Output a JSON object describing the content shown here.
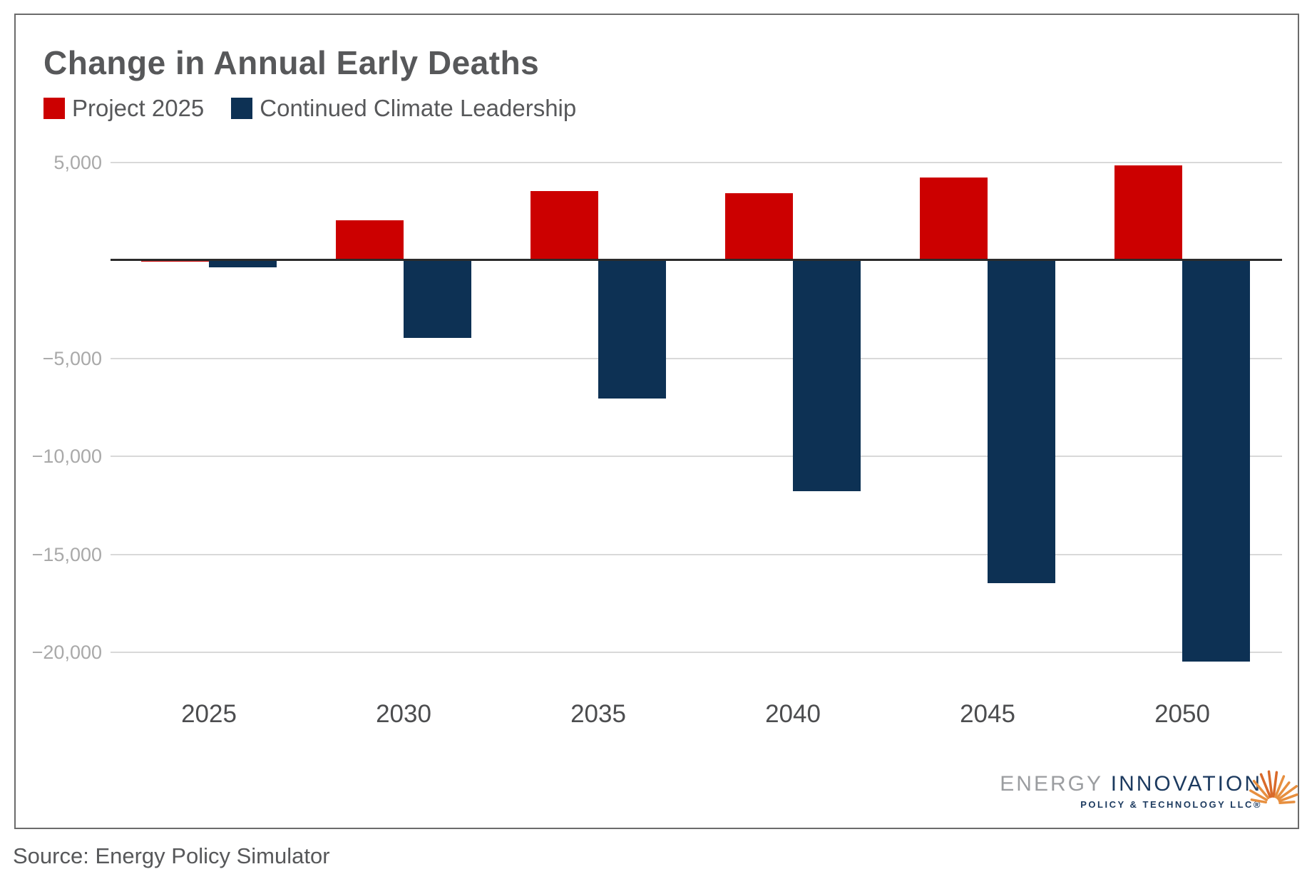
{
  "card": {
    "title": "Change in Annual Early Deaths"
  },
  "chart_data": {
    "type": "bar",
    "title": "Change in Annual Early Deaths",
    "xlabel": "",
    "ylabel": "",
    "categories": [
      "2025",
      "2030",
      "2035",
      "2040",
      "2045",
      "2050"
    ],
    "series": [
      {
        "name": "Project 2025",
        "color": "#cc0000",
        "values": [
          -100,
          2000,
          3500,
          3400,
          4200,
          4800
        ]
      },
      {
        "name": "Continued Climate Leadership",
        "color": "#0d3154",
        "values": [
          -400,
          -4000,
          -7100,
          -11800,
          -16500,
          -20500
        ]
      }
    ],
    "y_axis": {
      "ticks": [
        {
          "value": 5000,
          "label": "5,000"
        },
        {
          "value": -5000,
          "label": "−5,000"
        },
        {
          "value": -10000,
          "label": "−10,000"
        },
        {
          "value": -15000,
          "label": "−15,000"
        },
        {
          "value": -20000,
          "label": "−20,000"
        }
      ],
      "zero_line": true,
      "range": [
        -21000,
        6000
      ]
    },
    "grid": "horizontal",
    "legend_position": "top-left",
    "colors": {
      "gridline": "#d9d9d9",
      "zero_line": "#2b2b2b",
      "y_tick_text": "#a9a9a9",
      "x_tick_text": "#4c4d4f"
    }
  },
  "legend": {
    "items": [
      {
        "label": "Project 2025"
      },
      {
        "label": "Continued Climate Leadership"
      }
    ]
  },
  "source": {
    "text": "Source: Energy Policy Simulator"
  },
  "logo": {
    "name_part1": "ENERGY ",
    "name_part2": "INNOVATION",
    "subtitle": "POLICY & TECHNOLOGY LLC®",
    "accent_color": "#e78f3f"
  }
}
